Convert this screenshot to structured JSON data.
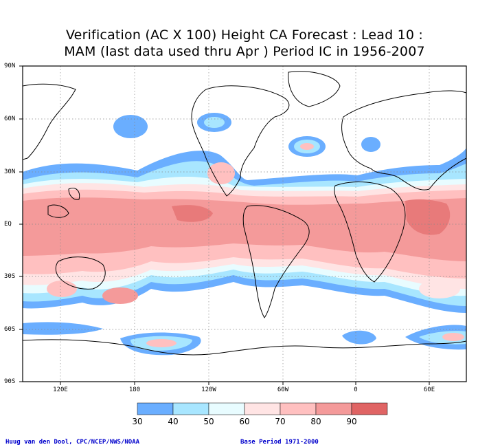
{
  "title_line1": "Verification (AC X 100) Height CA Forecast : Lead 10 :",
  "title_line2": "MAM (last data used thru Apr ) Period IC in 1956-2007",
  "lat_labels": [
    "90N",
    "60N",
    "30N",
    "EQ",
    "30S",
    "60S",
    "90S"
  ],
  "lon_labels": [
    "120E",
    "180",
    "120W",
    "60W",
    "0",
    "60E"
  ],
  "colorbar": {
    "labels": [
      "30",
      "40",
      "50",
      "60",
      "70",
      "80",
      "90"
    ],
    "colors": [
      "#6aaeff",
      "#a8e6ff",
      "#e8fcff",
      "#ffe4e4",
      "#ffc0c0",
      "#f49a9a",
      "#e87a7a",
      "#e06464"
    ]
  },
  "colors": {
    "blue": "#6aaeff",
    "light_blue": "#a8e6ff",
    "pale_cyan": "#e8fcff",
    "pale_pink": "#ffe4e4",
    "pink": "#ffc0c0",
    "salmon": "#f49a9a",
    "red": "#e87a7a"
  },
  "credit_left": "Huug van den Dool, CPC/NCEP/NWS/NOAA",
  "credit_right": "Base Period 1971-2000"
}
